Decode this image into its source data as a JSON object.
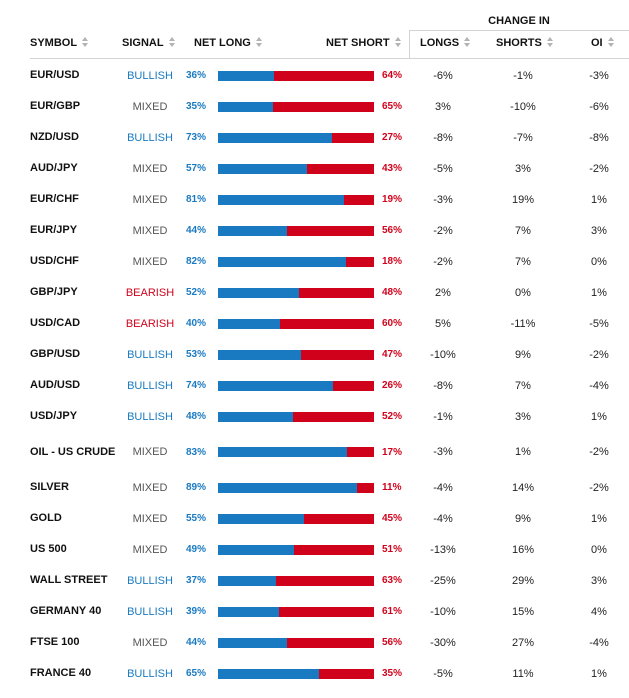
{
  "header": {
    "group_label": "CHANGE IN",
    "symbol": "SYMBOL",
    "signal": "SIGNAL",
    "net_long": "NET LONG",
    "net_short": "NET SHORT",
    "longs": "LONGS",
    "shorts": "SHORTS",
    "oi": "OI"
  },
  "colors": {
    "long": "#1a7ac1",
    "short": "#d0021b",
    "bullish": "#1a7ac1",
    "bearish": "#d0021b",
    "mixed": "#555555"
  },
  "rows": [
    {
      "symbol": "EUR/USD",
      "signal": "BULLISH",
      "net_long": "36%",
      "net_short": "64%",
      "long_frac": 0.36,
      "longs": "-6%",
      "shorts": "-1%",
      "oi": "-3%"
    },
    {
      "symbol": "EUR/GBP",
      "signal": "MIXED",
      "net_long": "35%",
      "net_short": "65%",
      "long_frac": 0.35,
      "longs": "3%",
      "shorts": "-10%",
      "oi": "-6%"
    },
    {
      "symbol": "NZD/USD",
      "signal": "BULLISH",
      "net_long": "73%",
      "net_short": "27%",
      "long_frac": 0.73,
      "longs": "-8%",
      "shorts": "-7%",
      "oi": "-8%"
    },
    {
      "symbol": "AUD/JPY",
      "signal": "MIXED",
      "net_long": "57%",
      "net_short": "43%",
      "long_frac": 0.57,
      "longs": "-5%",
      "shorts": "3%",
      "oi": "-2%"
    },
    {
      "symbol": "EUR/CHF",
      "signal": "MIXED",
      "net_long": "81%",
      "net_short": "19%",
      "long_frac": 0.81,
      "longs": "-3%",
      "shorts": "19%",
      "oi": "1%"
    },
    {
      "symbol": "EUR/JPY",
      "signal": "MIXED",
      "net_long": "44%",
      "net_short": "56%",
      "long_frac": 0.44,
      "longs": "-2%",
      "shorts": "7%",
      "oi": "3%"
    },
    {
      "symbol": "USD/CHF",
      "signal": "MIXED",
      "net_long": "82%",
      "net_short": "18%",
      "long_frac": 0.82,
      "longs": "-2%",
      "shorts": "7%",
      "oi": "0%"
    },
    {
      "symbol": "GBP/JPY",
      "signal": "BEARISH",
      "net_long": "52%",
      "net_short": "48%",
      "long_frac": 0.52,
      "longs": "2%",
      "shorts": "0%",
      "oi": "1%"
    },
    {
      "symbol": "USD/CAD",
      "signal": "BEARISH",
      "net_long": "40%",
      "net_short": "60%",
      "long_frac": 0.4,
      "longs": "5%",
      "shorts": "-11%",
      "oi": "-5%"
    },
    {
      "symbol": "GBP/USD",
      "signal": "BULLISH",
      "net_long": "53%",
      "net_short": "47%",
      "long_frac": 0.53,
      "longs": "-10%",
      "shorts": "9%",
      "oi": "-2%"
    },
    {
      "symbol": "AUD/USD",
      "signal": "BULLISH",
      "net_long": "74%",
      "net_short": "26%",
      "long_frac": 0.74,
      "longs": "-8%",
      "shorts": "7%",
      "oi": "-4%"
    },
    {
      "symbol": "USD/JPY",
      "signal": "BULLISH",
      "net_long": "48%",
      "net_short": "52%",
      "long_frac": 0.48,
      "longs": "-1%",
      "shorts": "3%",
      "oi": "1%"
    },
    {
      "symbol": "OIL - US CRUDE",
      "signal": "MIXED",
      "net_long": "83%",
      "net_short": "17%",
      "long_frac": 0.83,
      "longs": "-3%",
      "shorts": "1%",
      "oi": "-2%",
      "tall": true
    },
    {
      "symbol": "SILVER",
      "signal": "MIXED",
      "net_long": "89%",
      "net_short": "11%",
      "long_frac": 0.89,
      "longs": "-4%",
      "shorts": "14%",
      "oi": "-2%"
    },
    {
      "symbol": "GOLD",
      "signal": "MIXED",
      "net_long": "55%",
      "net_short": "45%",
      "long_frac": 0.55,
      "longs": "-4%",
      "shorts": "9%",
      "oi": "1%"
    },
    {
      "symbol": "US 500",
      "signal": "MIXED",
      "net_long": "49%",
      "net_short": "51%",
      "long_frac": 0.49,
      "longs": "-13%",
      "shorts": "16%",
      "oi": "0%"
    },
    {
      "symbol": "WALL STREET",
      "signal": "BULLISH",
      "net_long": "37%",
      "net_short": "63%",
      "long_frac": 0.37,
      "longs": "-25%",
      "shorts": "29%",
      "oi": "3%"
    },
    {
      "symbol": "GERMANY 40",
      "signal": "BULLISH",
      "net_long": "39%",
      "net_short": "61%",
      "long_frac": 0.39,
      "longs": "-10%",
      "shorts": "15%",
      "oi": "4%"
    },
    {
      "symbol": "FTSE 100",
      "signal": "MIXED",
      "net_long": "44%",
      "net_short": "56%",
      "long_frac": 0.44,
      "longs": "-30%",
      "shorts": "27%",
      "oi": "-4%"
    },
    {
      "symbol": "FRANCE 40",
      "signal": "BULLISH",
      "net_long": "65%",
      "net_short": "35%",
      "long_frac": 0.65,
      "longs": "-5%",
      "shorts": "11%",
      "oi": "1%"
    }
  ]
}
